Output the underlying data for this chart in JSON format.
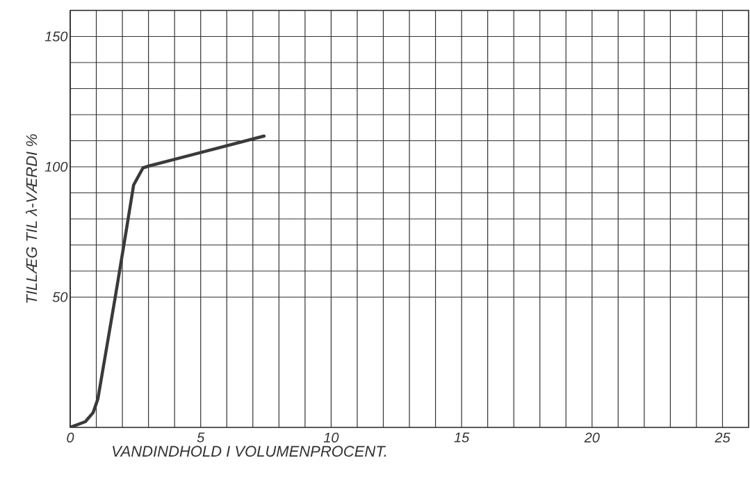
{
  "chart_data": {
    "type": "line",
    "xlabel": "VANDINDHOLD I VOLUMENPROCENT.",
    "ylabel": "TILLÆG TIL λ-VÆRDI %",
    "x": [
      0,
      0.58,
      0.88,
      1.06,
      1.73,
      2.12,
      2.43,
      2.79,
      3.05,
      7.43
    ],
    "series": [
      {
        "color": "#3a3a3a",
        "values": [
          0,
          2.2,
          5.7,
          10.9,
          50.2,
          73.8,
          93,
          99.6,
          100.4,
          111.8
        ]
      }
    ],
    "xlim": [
      0,
      26
    ],
    "ylim": [
      0,
      160
    ],
    "xticks": [
      0,
      5,
      10,
      15,
      20,
      25
    ],
    "yticks": [
      50,
      100,
      150
    ],
    "grid": true,
    "marker": "none",
    "line_style": "solid"
  }
}
